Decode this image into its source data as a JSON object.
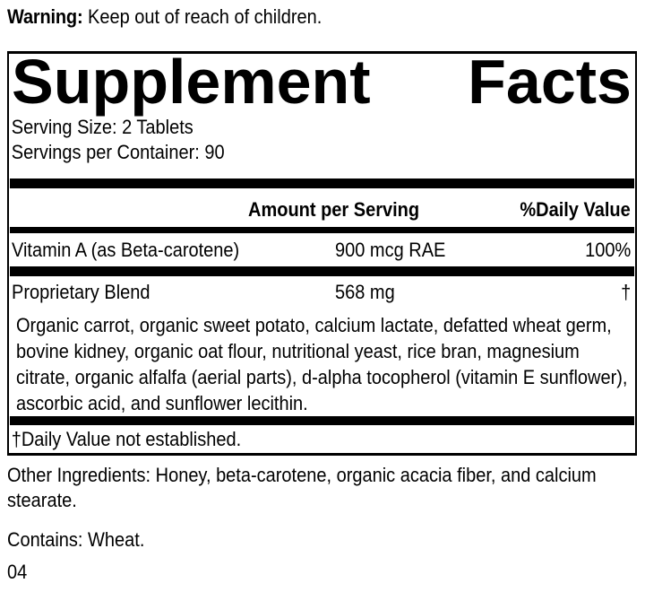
{
  "warning": {
    "label": "Warning:",
    "text": "Keep out of reach of children."
  },
  "panel": {
    "title_word1": "Supplement",
    "title_word2": "Facts",
    "serving_size": "Serving Size: 2 Tablets",
    "servings_per_container": "Servings per Container: 90",
    "header": {
      "amount": "Amount per Serving",
      "daily_value": "%Daily Value"
    },
    "rows": [
      {
        "name": "Vitamin A (as Beta-carotene)",
        "amount": "900 mcg RAE",
        "daily_value": "100%"
      },
      {
        "name": "Proprietary Blend",
        "amount": "568 mg",
        "daily_value": "†"
      }
    ],
    "blend_description": "Organic carrot, organic sweet potato, calcium lactate, defatted wheat germ, bovine kidney, organic oat flour, nutritional yeast, rice bran, magnesium citrate, organic alfalfa (aerial parts), d-alpha tocopherol (vitamin E sunflower), ascorbic acid, and sunflower lecithin.",
    "footnote": "†Daily Value not established."
  },
  "other_ingredients": "Other Ingredients: Honey, beta-carotene, organic acacia fiber, and calcium stearate.",
  "contains": "Contains: Wheat.",
  "code": "04",
  "colors": {
    "ink": "#000000",
    "background": "#ffffff"
  }
}
